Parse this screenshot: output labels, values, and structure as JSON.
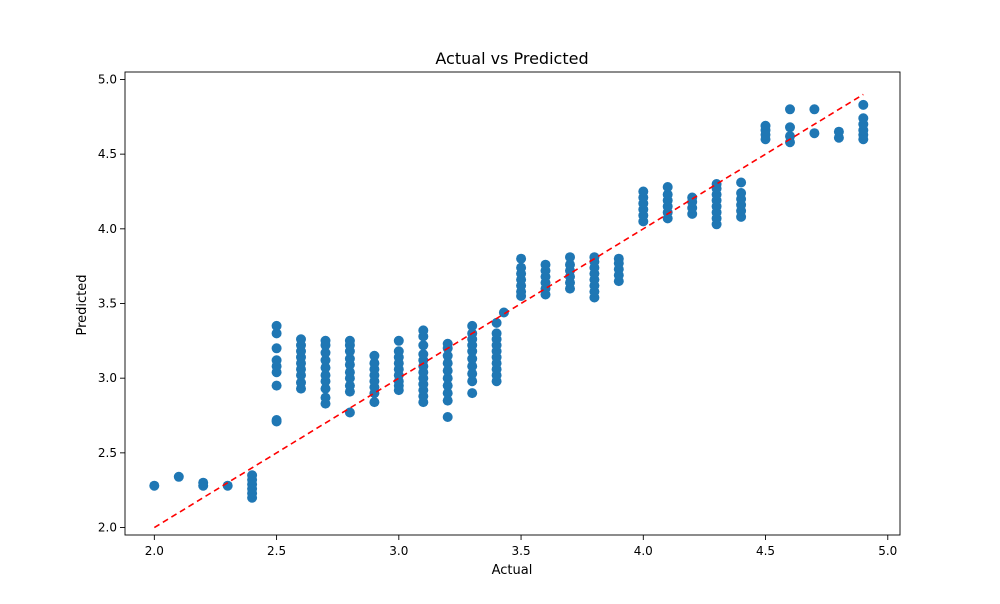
{
  "chart_data": {
    "type": "scatter",
    "title": "Actual vs Predicted",
    "xlabel": "Actual",
    "ylabel": "Predicted",
    "xlim": [
      1.88,
      5.05
    ],
    "ylim": [
      1.95,
      5.05
    ],
    "xticks": [
      2.0,
      2.5,
      3.0,
      3.5,
      4.0,
      4.5,
      5.0
    ],
    "yticks": [
      2.0,
      2.5,
      3.0,
      3.5,
      4.0,
      4.5,
      5.0
    ],
    "xtick_labels": [
      "2.0",
      "2.5",
      "3.0",
      "3.5",
      "4.0",
      "4.5",
      "5.0"
    ],
    "ytick_labels": [
      "2.0",
      "2.5",
      "3.0",
      "3.5",
      "4.0",
      "4.5",
      "5.0"
    ],
    "grid": false,
    "point_color": "#1f77b4",
    "reference_line": {
      "x": [
        2.0,
        4.9
      ],
      "y": [
        2.0,
        4.9
      ],
      "color": "#ff0000",
      "style": "dashed"
    },
    "points": [
      [
        2.0,
        2.28
      ],
      [
        2.1,
        2.34
      ],
      [
        2.2,
        2.28
      ],
      [
        2.2,
        2.3
      ],
      [
        2.3,
        2.28
      ],
      [
        2.4,
        2.2
      ],
      [
        2.4,
        2.23
      ],
      [
        2.4,
        2.26
      ],
      [
        2.4,
        2.29
      ],
      [
        2.4,
        2.32
      ],
      [
        2.4,
        2.35
      ],
      [
        2.5,
        2.71
      ],
      [
        2.5,
        2.72
      ],
      [
        2.5,
        2.95
      ],
      [
        2.5,
        3.04
      ],
      [
        2.5,
        3.08
      ],
      [
        2.5,
        3.12
      ],
      [
        2.5,
        3.2
      ],
      [
        2.5,
        3.3
      ],
      [
        2.5,
        3.35
      ],
      [
        2.6,
        2.93
      ],
      [
        2.6,
        2.97
      ],
      [
        2.6,
        3.02
      ],
      [
        2.6,
        3.06
      ],
      [
        2.6,
        3.1
      ],
      [
        2.6,
        3.14
      ],
      [
        2.6,
        3.18
      ],
      [
        2.6,
        3.22
      ],
      [
        2.6,
        3.26
      ],
      [
        2.7,
        2.83
      ],
      [
        2.7,
        2.87
      ],
      [
        2.7,
        2.93
      ],
      [
        2.7,
        2.98
      ],
      [
        2.7,
        3.02
      ],
      [
        2.7,
        3.07
      ],
      [
        2.7,
        3.12
      ],
      [
        2.7,
        3.17
      ],
      [
        2.7,
        3.22
      ],
      [
        2.7,
        3.25
      ],
      [
        2.8,
        2.77
      ],
      [
        2.8,
        2.91
      ],
      [
        2.8,
        2.95
      ],
      [
        2.8,
        3.0
      ],
      [
        2.8,
        3.04
      ],
      [
        2.8,
        3.09
      ],
      [
        2.8,
        3.13
      ],
      [
        2.8,
        3.18
      ],
      [
        2.8,
        3.22
      ],
      [
        2.8,
        3.25
      ],
      [
        2.9,
        2.84
      ],
      [
        2.9,
        2.9
      ],
      [
        2.9,
        2.94
      ],
      [
        2.9,
        2.98
      ],
      [
        2.9,
        3.02
      ],
      [
        2.9,
        3.06
      ],
      [
        2.9,
        3.1
      ],
      [
        2.9,
        3.15
      ],
      [
        3.0,
        2.92
      ],
      [
        3.0,
        2.95
      ],
      [
        3.0,
        2.98
      ],
      [
        3.0,
        3.02
      ],
      [
        3.0,
        3.06
      ],
      [
        3.0,
        3.1
      ],
      [
        3.0,
        3.14
      ],
      [
        3.0,
        3.18
      ],
      [
        3.0,
        3.25
      ],
      [
        3.1,
        2.84
      ],
      [
        3.1,
        2.88
      ],
      [
        3.1,
        2.92
      ],
      [
        3.1,
        2.96
      ],
      [
        3.1,
        3.0
      ],
      [
        3.1,
        3.04
      ],
      [
        3.1,
        3.08
      ],
      [
        3.1,
        3.12
      ],
      [
        3.1,
        3.16
      ],
      [
        3.1,
        3.22
      ],
      [
        3.1,
        3.28
      ],
      [
        3.1,
        3.32
      ],
      [
        3.2,
        2.74
      ],
      [
        3.2,
        2.85
      ],
      [
        3.2,
        2.9
      ],
      [
        3.2,
        2.95
      ],
      [
        3.2,
        3.0
      ],
      [
        3.2,
        3.05
      ],
      [
        3.2,
        3.1
      ],
      [
        3.2,
        3.15
      ],
      [
        3.2,
        3.2
      ],
      [
        3.2,
        3.23
      ],
      [
        3.3,
        2.9
      ],
      [
        3.3,
        2.98
      ],
      [
        3.3,
        3.03
      ],
      [
        3.3,
        3.08
      ],
      [
        3.3,
        3.13
      ],
      [
        3.3,
        3.18
      ],
      [
        3.3,
        3.22
      ],
      [
        3.3,
        3.26
      ],
      [
        3.3,
        3.3
      ],
      [
        3.3,
        3.35
      ],
      [
        3.4,
        2.98
      ],
      [
        3.4,
        3.02
      ],
      [
        3.4,
        3.06
      ],
      [
        3.4,
        3.1
      ],
      [
        3.4,
        3.14
      ],
      [
        3.4,
        3.18
      ],
      [
        3.4,
        3.22
      ],
      [
        3.4,
        3.26
      ],
      [
        3.4,
        3.3
      ],
      [
        3.4,
        3.37
      ],
      [
        3.43,
        3.44
      ],
      [
        3.5,
        3.55
      ],
      [
        3.5,
        3.58
      ],
      [
        3.5,
        3.62
      ],
      [
        3.5,
        3.66
      ],
      [
        3.5,
        3.7
      ],
      [
        3.5,
        3.74
      ],
      [
        3.5,
        3.8
      ],
      [
        3.6,
        3.56
      ],
      [
        3.6,
        3.6
      ],
      [
        3.6,
        3.64
      ],
      [
        3.6,
        3.68
      ],
      [
        3.6,
        3.72
      ],
      [
        3.6,
        3.76
      ],
      [
        3.7,
        3.6
      ],
      [
        3.7,
        3.64
      ],
      [
        3.7,
        3.68
      ],
      [
        3.7,
        3.72
      ],
      [
        3.7,
        3.76
      ],
      [
        3.7,
        3.81
      ],
      [
        3.8,
        3.54
      ],
      [
        3.8,
        3.58
      ],
      [
        3.8,
        3.62
      ],
      [
        3.8,
        3.66
      ],
      [
        3.8,
        3.7
      ],
      [
        3.8,
        3.74
      ],
      [
        3.8,
        3.78
      ],
      [
        3.8,
        3.81
      ],
      [
        3.9,
        3.65
      ],
      [
        3.9,
        3.69
      ],
      [
        3.9,
        3.73
      ],
      [
        3.9,
        3.77
      ],
      [
        3.9,
        3.8
      ],
      [
        4.0,
        4.05
      ],
      [
        4.0,
        4.09
      ],
      [
        4.0,
        4.13
      ],
      [
        4.0,
        4.17
      ],
      [
        4.0,
        4.21
      ],
      [
        4.0,
        4.25
      ],
      [
        4.1,
        4.07
      ],
      [
        4.1,
        4.11
      ],
      [
        4.1,
        4.15
      ],
      [
        4.1,
        4.19
      ],
      [
        4.1,
        4.23
      ],
      [
        4.1,
        4.28
      ],
      [
        4.2,
        4.1
      ],
      [
        4.2,
        4.14
      ],
      [
        4.2,
        4.18
      ],
      [
        4.2,
        4.21
      ],
      [
        4.3,
        4.03
      ],
      [
        4.3,
        4.07
      ],
      [
        4.3,
        4.11
      ],
      [
        4.3,
        4.15
      ],
      [
        4.3,
        4.19
      ],
      [
        4.3,
        4.23
      ],
      [
        4.3,
        4.27
      ],
      [
        4.3,
        4.3
      ],
      [
        4.4,
        4.08
      ],
      [
        4.4,
        4.12
      ],
      [
        4.4,
        4.16
      ],
      [
        4.4,
        4.2
      ],
      [
        4.4,
        4.24
      ],
      [
        4.4,
        4.31
      ],
      [
        4.5,
        4.6
      ],
      [
        4.5,
        4.63
      ],
      [
        4.5,
        4.66
      ],
      [
        4.5,
        4.69
      ],
      [
        4.6,
        4.58
      ],
      [
        4.6,
        4.62
      ],
      [
        4.6,
        4.68
      ],
      [
        4.6,
        4.8
      ],
      [
        4.7,
        4.64
      ],
      [
        4.7,
        4.8
      ],
      [
        4.8,
        4.61
      ],
      [
        4.8,
        4.65
      ],
      [
        4.9,
        4.6
      ],
      [
        4.9,
        4.63
      ],
      [
        4.9,
        4.66
      ],
      [
        4.9,
        4.7
      ],
      [
        4.9,
        4.74
      ],
      [
        4.9,
        4.83
      ]
    ]
  }
}
